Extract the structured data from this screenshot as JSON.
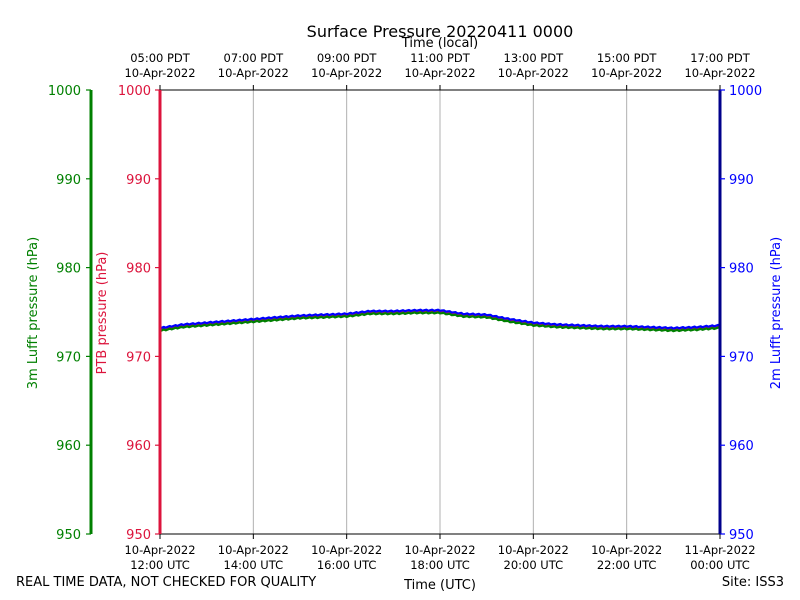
{
  "chart_data": {
    "type": "line",
    "title": "Surface Pressure 20220411 0000",
    "top_axis_label": "Time (local)",
    "bottom_axis_label": "Time (UTC)",
    "y_left_outer_label": "3m Lufft pressure (hPa)",
    "y_left_inner_label": "PTB pressure (hPa)",
    "y_right_label": "2m Lufft pressure (hPa)",
    "ylim": [
      950,
      1000
    ],
    "yticks": [
      950,
      960,
      970,
      980,
      990,
      1000
    ],
    "ytick_labels": [
      "950",
      "960",
      "970",
      "980",
      "990",
      "1000"
    ],
    "xlim": [
      12,
      24
    ],
    "xticks": [
      12,
      14,
      16,
      18,
      20,
      22,
      24
    ],
    "x_utc_labels": [
      [
        "10-Apr-2022",
        "12:00 UTC"
      ],
      [
        "10-Apr-2022",
        "14:00 UTC"
      ],
      [
        "10-Apr-2022",
        "16:00 UTC"
      ],
      [
        "10-Apr-2022",
        "18:00 UTC"
      ],
      [
        "10-Apr-2022",
        "20:00 UTC"
      ],
      [
        "10-Apr-2022",
        "22:00 UTC"
      ],
      [
        "11-Apr-2022",
        "00:00 UTC"
      ]
    ],
    "x_local_labels": [
      [
        "05:00 PDT",
        "10-Apr-2022"
      ],
      [
        "07:00 PDT",
        "10-Apr-2022"
      ],
      [
        "09:00 PDT",
        "10-Apr-2022"
      ],
      [
        "11:00 PDT",
        "10-Apr-2022"
      ],
      [
        "13:00 PDT",
        "10-Apr-2022"
      ],
      [
        "15:00 PDT",
        "10-Apr-2022"
      ],
      [
        "17:00 PDT",
        "10-Apr-2022"
      ]
    ],
    "grid": "vertical",
    "series": [
      {
        "name": "PTB pressure",
        "color": "#dc143c",
        "x": [
          12.0,
          12.5,
          13.0,
          13.5,
          14.0,
          14.5,
          15.0,
          15.5,
          16.0,
          16.5,
          17.0,
          17.5,
          18.0,
          18.5,
          19.0,
          19.5,
          20.0,
          20.5,
          21.0,
          21.5,
          22.0,
          22.5,
          23.0,
          23.5,
          24.0
        ],
        "values": [
          973.0,
          973.4,
          973.6,
          973.8,
          974.0,
          974.2,
          974.4,
          974.5,
          974.6,
          974.9,
          974.9,
          975.0,
          975.0,
          974.6,
          974.5,
          974.0,
          973.6,
          973.4,
          973.3,
          973.2,
          973.2,
          973.1,
          973.0,
          973.1,
          973.3
        ]
      },
      {
        "name": "3m Lufft pressure",
        "color": "#008000",
        "x": [
          12.0,
          12.5,
          13.0,
          13.5,
          14.0,
          14.5,
          15.0,
          15.5,
          16.0,
          16.5,
          17.0,
          17.5,
          18.0,
          18.5,
          19.0,
          19.5,
          20.0,
          20.5,
          21.0,
          21.5,
          22.0,
          22.5,
          23.0,
          23.5,
          24.0
        ],
        "values": [
          972.9,
          973.3,
          973.5,
          973.7,
          973.9,
          974.1,
          974.3,
          974.4,
          974.5,
          974.8,
          974.8,
          974.9,
          974.9,
          974.5,
          974.4,
          973.9,
          973.5,
          973.3,
          973.2,
          973.1,
          973.1,
          973.0,
          972.9,
          973.0,
          973.2
        ]
      },
      {
        "name": "2m Lufft pressure",
        "color": "#0000ff",
        "x": [
          12.0,
          12.5,
          13.0,
          13.5,
          14.0,
          14.5,
          15.0,
          15.5,
          16.0,
          16.5,
          17.0,
          17.5,
          18.0,
          18.5,
          19.0,
          19.5,
          20.0,
          20.5,
          21.0,
          21.5,
          22.0,
          22.5,
          23.0,
          23.5,
          24.0
        ],
        "values": [
          973.2,
          973.6,
          973.8,
          974.0,
          974.2,
          974.4,
          974.6,
          974.7,
          974.8,
          975.1,
          975.1,
          975.2,
          975.2,
          974.8,
          974.7,
          974.2,
          973.8,
          973.6,
          973.5,
          973.4,
          973.4,
          973.3,
          973.2,
          973.3,
          973.5
        ]
      }
    ],
    "axis_colors": {
      "outer_left": "#008000",
      "inner_left": "#dc143c",
      "right": "#0000ff",
      "right_spine": "#00008b",
      "grid": "#b0b0b0"
    }
  },
  "footer": {
    "note": "REAL TIME DATA, NOT CHECKED FOR QUALITY",
    "site": "Site: ISS3"
  }
}
